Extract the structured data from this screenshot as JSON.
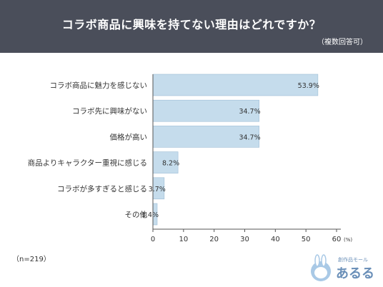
{
  "header": {
    "title": "コラボ商品に興味を持てない理由はどれですか？",
    "subtitle": "（複数回答可）"
  },
  "footer": {
    "n_label": "（n=219）",
    "logo_small": "創作品モール",
    "logo_main": "あるる"
  },
  "colors": {
    "header_bg": "#4a4e5a",
    "bar_fill": "#c5dcec",
    "bar_stroke": "#9dbdd6",
    "axis": "#555555"
  },
  "chart_data": {
    "type": "bar",
    "orientation": "horizontal",
    "categories": [
      "コラボ商品に魅力を感じない",
      "コラボ先に興味がない",
      "価格が高い",
      "商品よりキャラクター重視に感じる",
      "コラボが多すぎると感じる",
      "その他"
    ],
    "values": [
      53.9,
      34.7,
      34.7,
      8.2,
      3.7,
      1.4
    ],
    "value_labels": [
      "53.9%",
      "34.7%",
      "34.7%",
      "8.2%",
      "3.7%",
      "1.4%"
    ],
    "x_ticks": [
      "0",
      "10",
      "20",
      "30",
      "40",
      "50",
      "60"
    ],
    "x_unit": "(%)",
    "xlim": [
      0,
      60
    ],
    "grid": false
  }
}
